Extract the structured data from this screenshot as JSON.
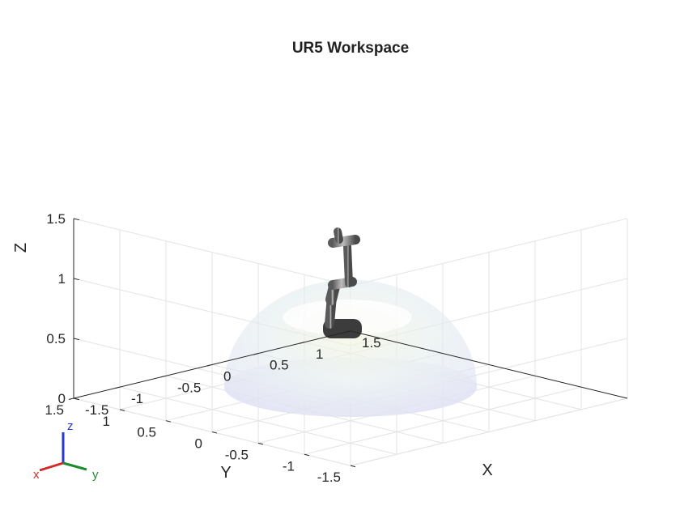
{
  "chart_data": {
    "type": "3d-surface",
    "title": "UR5 Workspace",
    "xlabel": "X",
    "ylabel": "Y",
    "zlabel": "Z",
    "xlim": [
      -1.5,
      1.5
    ],
    "ylim": [
      -1.5,
      1.5
    ],
    "zlim": [
      0,
      1.5
    ],
    "x_ticks": [
      "-1.5",
      "-1",
      "-0.5",
      "0",
      "0.5",
      "1",
      "1.5"
    ],
    "y_ticks": [
      "-1.5",
      "-1",
      "-0.5",
      "0",
      "0.5",
      "1",
      "1.5"
    ],
    "z_ticks": [
      "0",
      "0.5",
      "1",
      "1.5"
    ],
    "grid": true,
    "workspace": {
      "shape": "hemisphere",
      "radius": 0.95,
      "center": [
        0,
        0,
        0
      ]
    },
    "robot": "UR5"
  },
  "triad": {
    "x": "x",
    "y": "y",
    "z": "z"
  },
  "colors": {
    "grid": "#e3e3e3",
    "axis": "#262626",
    "triad_x": "#d42a2a",
    "triad_y": "#1e8a2e",
    "triad_z": "#2a38d0"
  }
}
